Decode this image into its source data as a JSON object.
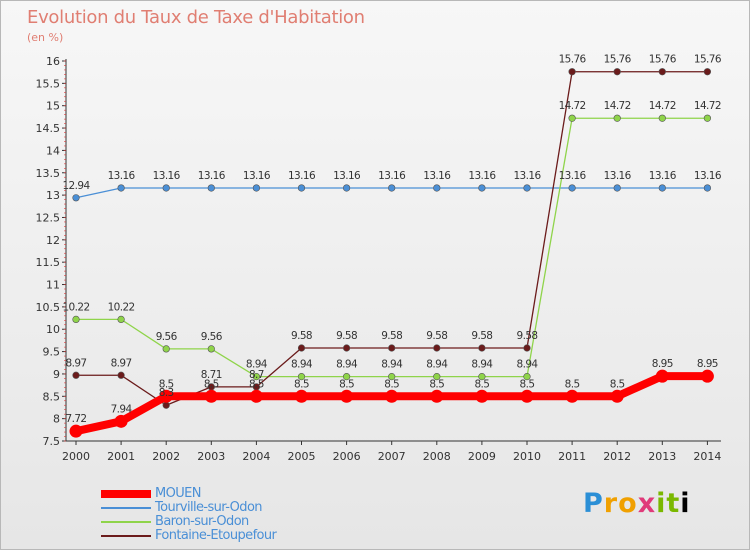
{
  "header": {
    "title": "Evolution du Taux de Taxe d'Habitation",
    "unit": "(en %)"
  },
  "logo": {
    "text": "Proxiti"
  },
  "chart_data": {
    "type": "line",
    "x": [
      2000,
      2001,
      2002,
      2003,
      2004,
      2005,
      2006,
      2007,
      2008,
      2009,
      2010,
      2011,
      2012,
      2013,
      2014
    ],
    "ylim": [
      7.5,
      16
    ],
    "yticks": [
      7.5,
      8,
      8.5,
      9,
      9.5,
      10,
      10.5,
      11,
      11.5,
      12,
      12.5,
      13,
      13.5,
      14,
      14.5,
      15,
      15.5,
      16
    ],
    "ylabel": "(en %)",
    "legend_position": "bottom-left",
    "grid": false,
    "series": [
      {
        "name": "MOUEN",
        "color": "#ff0000",
        "values": [
          7.72,
          7.94,
          8.5,
          8.5,
          8.5,
          8.5,
          8.5,
          8.5,
          8.5,
          8.5,
          8.5,
          8.5,
          8.5,
          8.95,
          8.95
        ],
        "labels": [
          "7.72",
          "7.94",
          "8.5",
          "8.5",
          "8.5",
          "8.5",
          "8.5",
          "8.5",
          "8.5",
          "8.5",
          "8.5",
          "8.5",
          "8.5",
          "8.95",
          "8.95"
        ]
      },
      {
        "name": "Tourville-sur-Odon",
        "color": "#4a8fd6",
        "values": [
          12.94,
          13.16,
          13.16,
          13.16,
          13.16,
          13.16,
          13.16,
          13.16,
          13.16,
          13.16,
          13.16,
          13.16,
          13.16,
          13.16,
          13.16
        ],
        "labels": [
          "12.94",
          "13.16",
          "13.16",
          "13.16",
          "13.16",
          "13.16",
          "13.16",
          "13.16",
          "13.16",
          "13.16",
          "13.16",
          "13.16",
          "13.16",
          "13.16",
          "13.16"
        ]
      },
      {
        "name": "Baron-sur-Odon",
        "color": "#8fd44a",
        "values": [
          10.22,
          10.22,
          9.56,
          9.56,
          8.94,
          8.94,
          8.94,
          8.94,
          8.94,
          8.94,
          8.94,
          14.72,
          14.72,
          14.72,
          14.72
        ],
        "labels": [
          "10.22",
          "10.22",
          "9.56",
          "9.56",
          "8.94",
          "8.94",
          "8.94",
          "8.94",
          "8.94",
          "8.94",
          "8.94",
          "14.72",
          "14.72",
          "14.72",
          "14.72"
        ]
      },
      {
        "name": "Fontaine-Etoupefour",
        "color": "#6b1b1b",
        "values": [
          8.97,
          8.97,
          8.3,
          8.71,
          8.71,
          9.58,
          9.58,
          9.58,
          9.58,
          9.58,
          9.58,
          15.76,
          15.76,
          15.76,
          15.76
        ],
        "labels": [
          "8.97",
          "8.97",
          "8.3",
          "8.71",
          "8.7",
          "9.58",
          "9.58",
          "9.58",
          "9.58",
          "9.58",
          "9.58",
          "15.76",
          "15.76",
          "15.76",
          "15.76"
        ]
      }
    ]
  }
}
